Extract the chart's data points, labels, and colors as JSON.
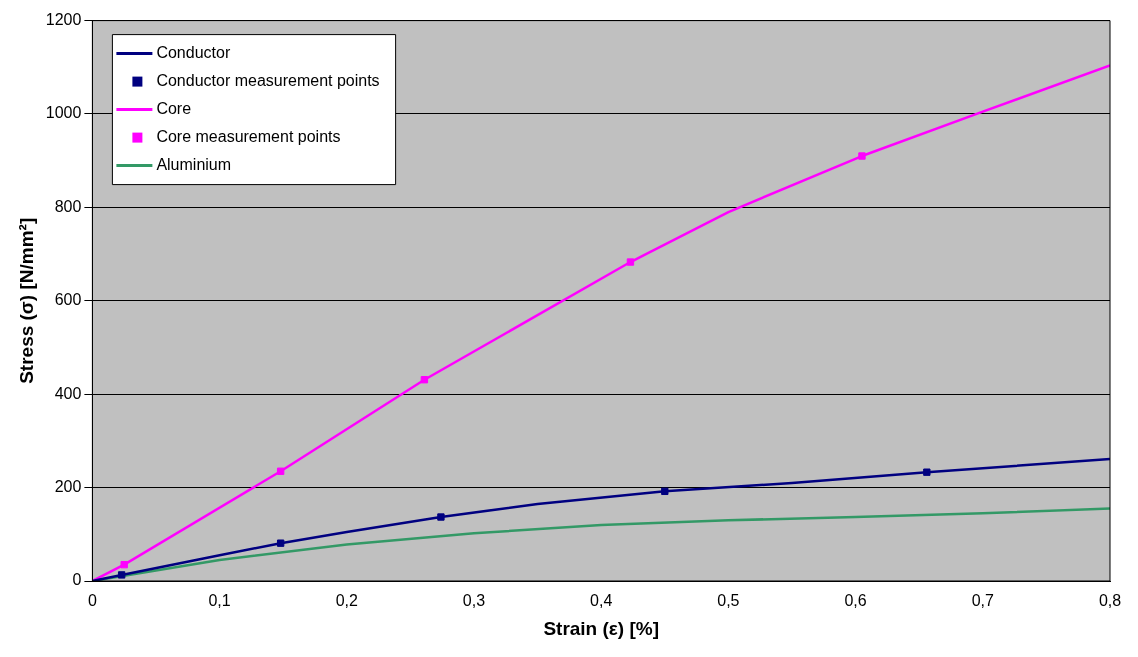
{
  "chart_data": {
    "type": "line",
    "xlabel": "Strain (ε) [%]",
    "ylabel": "Stress (σ) [N/mm²]",
    "xlim": [
      0,
      0.8
    ],
    "xticks": [
      0,
      {
        "value": 0.1,
        "label": "0,1"
      },
      {
        "value": 0.2,
        "label": "0,2"
      },
      {
        "value": 0.3,
        "label": "0,3"
      },
      {
        "value": 0.4,
        "label": "0,4"
      },
      {
        "value": 0.5,
        "label": "0,5"
      },
      {
        "value": 0.6,
        "label": "0,6"
      },
      {
        "value": 0.7,
        "label": "0,7"
      },
      {
        "value": 0.8,
        "label": "0,8"
      }
    ],
    "ylim": [
      0,
      1200
    ],
    "yticks": [
      0,
      200,
      400,
      600,
      800,
      1000,
      1200
    ],
    "grid": "y",
    "legend": "top left",
    "series": [
      {
        "name": "Conductor",
        "marker": "none",
        "color": "#000080",
        "x": [
          0,
          0.023,
          0.1,
          0.148,
          0.2,
          0.274,
          0.35,
          0.45,
          0.55,
          0.656,
          0.8
        ],
        "values": [
          0,
          13,
          55,
          81,
          105,
          137,
          165,
          192,
          210,
          233,
          261
        ]
      },
      {
        "name": "Conductor measurement points",
        "type": "scatter",
        "marker": "square",
        "color": "#000080",
        "x": [
          0.023,
          0.148,
          0.274,
          0.45,
          0.656
        ],
        "values": [
          13,
          81,
          137,
          192,
          233
        ]
      },
      {
        "name": "Core",
        "marker": "none",
        "color": "#ff00ff",
        "x": [
          0,
          0.025,
          0.148,
          0.261,
          0.423,
          0.5,
          0.605,
          0.7,
          0.8
        ],
        "values": [
          0,
          35,
          235,
          431,
          683,
          790,
          910,
          1005,
          1104
        ]
      },
      {
        "name": "Core measurement points",
        "type": "scatter",
        "marker": "square",
        "color": "#ff00ff",
        "x": [
          0.025,
          0.148,
          0.261,
          0.423,
          0.605
        ],
        "values": [
          35,
          235,
          431,
          683,
          910
        ]
      },
      {
        "name": "Aluminium",
        "marker": "none",
        "color": "#339966",
        "x": [
          0,
          0.1,
          0.2,
          0.3,
          0.4,
          0.5,
          0.6,
          0.7,
          0.8
        ],
        "values": [
          0,
          45,
          78,
          102,
          120,
          130,
          137,
          145,
          155
        ]
      }
    ]
  }
}
